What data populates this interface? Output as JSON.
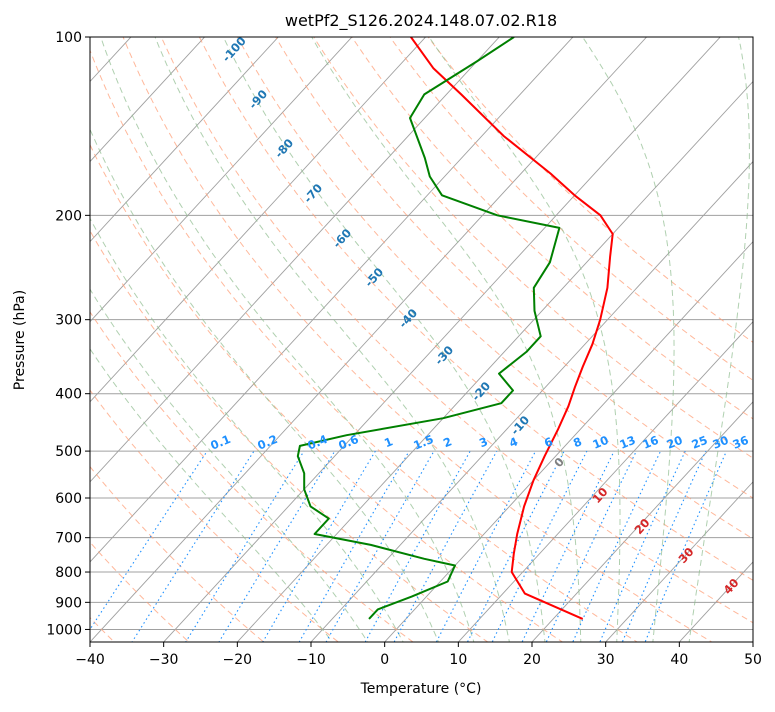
{
  "chart_data": {
    "type": "line",
    "subtype": "skew-T log-P diagram",
    "title": "wetPf2_S126.2024.148.07.02.R18",
    "xlabel": "Temperature (°C)",
    "ylabel": "Pressure (hPa)",
    "xlim": [
      -40,
      50
    ],
    "ylim": [
      1050,
      100
    ],
    "y_scale": "log",
    "x_ticks": [
      "−40",
      "−30",
      "−20",
      "−10",
      "0",
      "10",
      "20",
      "30",
      "40",
      "50"
    ],
    "x_tick_values": [
      -40,
      -30,
      -20,
      -10,
      0,
      10,
      20,
      30,
      40,
      50
    ],
    "y_ticks": [
      "100",
      "200",
      "300",
      "400",
      "500",
      "600",
      "700",
      "800",
      "900",
      "1000"
    ],
    "y_tick_values": [
      100,
      200,
      300,
      400,
      500,
      600,
      700,
      800,
      900,
      1000
    ],
    "grid": true,
    "series": [
      {
        "role": "temperature",
        "color": "#ff0000",
        "points": [
          [
            24.0,
            960
          ],
          [
            13.0,
            870
          ],
          [
            8.5,
            800
          ],
          [
            6.5,
            745
          ],
          [
            4.5,
            690
          ],
          [
            2.0,
            620
          ],
          [
            0.0,
            560
          ],
          [
            -1.5,
            510
          ],
          [
            -3.0,
            460
          ],
          [
            -4.5,
            420
          ],
          [
            -6.0,
            390
          ],
          [
            -7.5,
            360
          ],
          [
            -9.0,
            330
          ],
          [
            -11.0,
            300
          ],
          [
            -14.0,
            265
          ],
          [
            -17.5,
            235
          ],
          [
            -20.0,
            215
          ],
          [
            -24.0,
            200
          ],
          [
            -30.0,
            185
          ],
          [
            -36.0,
            170
          ],
          [
            -47.0,
            147
          ],
          [
            -58.0,
            125
          ],
          [
            -65.0,
            113
          ],
          [
            -72.0,
            100
          ]
        ]
      },
      {
        "role": "dewpoint",
        "color": "#008000",
        "points": [
          [
            -5.0,
            960
          ],
          [
            -5.0,
            925
          ],
          [
            -2.0,
            880
          ],
          [
            1.0,
            830
          ],
          [
            0.0,
            780
          ],
          [
            -5.0,
            760
          ],
          [
            -14.0,
            720
          ],
          [
            -23.0,
            690
          ],
          [
            -23.0,
            650
          ],
          [
            -27.0,
            620
          ],
          [
            -30.0,
            580
          ],
          [
            -32.0,
            545
          ],
          [
            -35.0,
            510
          ],
          [
            -36.0,
            490
          ],
          [
            -31.0,
            470
          ],
          [
            -20.0,
            440
          ],
          [
            -14.0,
            415
          ],
          [
            -14.0,
            395
          ],
          [
            -18.0,
            370
          ],
          [
            -17.0,
            340
          ],
          [
            -17.0,
            320
          ],
          [
            -21.0,
            290
          ],
          [
            -24.0,
            265
          ],
          [
            -25.0,
            240
          ],
          [
            -28.0,
            210
          ],
          [
            -38.0,
            200
          ],
          [
            -48.0,
            185
          ],
          [
            -52.0,
            172
          ],
          [
            -55.0,
            160
          ],
          [
            -62.0,
            137
          ],
          [
            -63.0,
            125
          ],
          [
            -60.0,
            110
          ],
          [
            -58.0,
            100
          ]
        ]
      }
    ],
    "reference_lines": {
      "isotherms_step": 10,
      "dry_adiabats_C": [
        -100,
        -90,
        -80,
        -70,
        -60,
        -50,
        -40,
        -30,
        -20,
        -10,
        0,
        10,
        20,
        30,
        40,
        50,
        60,
        70,
        80,
        90,
        100,
        110,
        120
      ],
      "dry_adiabat_labels": [
        "-100",
        "-90",
        "-80",
        "-70",
        "-60",
        "-50",
        "-40",
        "-30",
        "-20",
        "-10"
      ],
      "moist_adiabat_labels": [
        "0",
        "10",
        "20",
        "30",
        "40"
      ],
      "mixing_ratio_labels": [
        "0.1",
        "0.2",
        "0.4",
        "0.6",
        "1",
        "1.5",
        "2",
        "3",
        "4",
        "6",
        "8",
        "10",
        "13",
        "16",
        "20",
        "25",
        "30",
        "36"
      ]
    },
    "colors": {
      "temperature": "#ff0000",
      "dewpoint": "#008000",
      "isotherm": "#a0a0a0",
      "isobar": "#a0a0a0",
      "dry_adiabat": "#ffa07a",
      "moist_adiabat": "#8fbc8f",
      "mixing_ratio": "#1e90ff",
      "dry_label": "#1f77b4",
      "moist_label_cold": "#808080",
      "moist_label_warm": "#d62728",
      "mixing_label": "#1e90ff"
    }
  }
}
